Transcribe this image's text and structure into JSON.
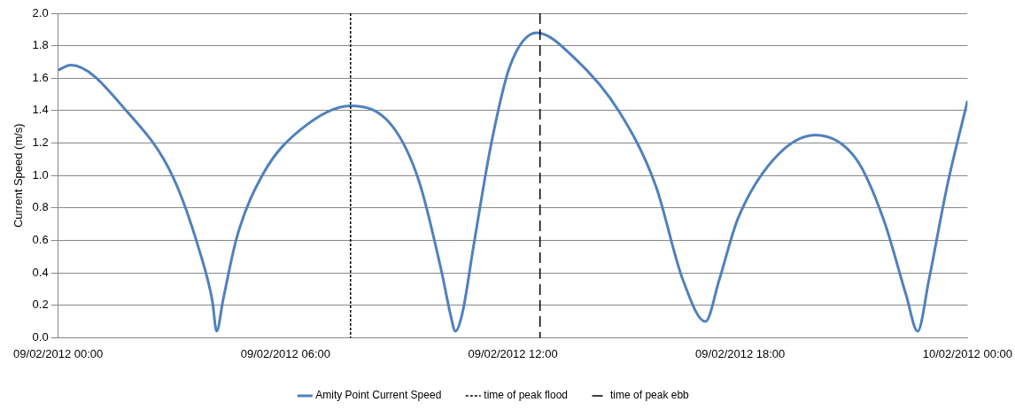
{
  "chart_data": {
    "type": "line",
    "ylabel": "Current Speed (m/s)",
    "x": [
      "2012-02-09T00:00",
      "2012-02-09T00:20",
      "2012-02-09T01:50",
      "2012-02-09T03:02",
      "2012-02-09T03:45",
      "2012-02-09T04:04",
      "2012-02-09T04:11",
      "2012-02-09T04:21",
      "2012-02-09T04:43",
      "2012-02-09T05:26",
      "2012-02-09T06:23",
      "2012-02-09T07:43",
      "2012-02-09T08:48",
      "2012-02-09T09:31",
      "2012-02-09T10:07",
      "2012-02-09T10:22",
      "2012-02-09T10:29",
      "2012-02-09T10:40",
      "2012-02-09T10:58",
      "2012-02-09T11:26",
      "2012-02-09T11:55",
      "2012-02-09T12:38",
      "2012-02-09T13:36",
      "2012-02-09T14:49",
      "2012-02-09T15:46",
      "2012-02-09T16:29",
      "2012-02-09T17:05",
      "2012-02-09T17:27",
      "2012-02-09T17:56",
      "2012-02-09T18:53",
      "2012-02-09T19:59",
      "2012-02-09T21:04",
      "2012-02-09T21:47",
      "2012-02-09T22:23",
      "2012-02-09T22:41",
      "2012-02-09T22:59",
      "2012-02-09T23:28",
      "2012-02-10T00:00"
    ],
    "series": [
      {
        "name": "Amity Point Current Speed",
        "color": "#4f81bd",
        "values": [
          1.65,
          1.68,
          1.39,
          0.99,
          0.52,
          0.23,
          0.04,
          0.23,
          0.62,
          1.02,
          1.28,
          1.43,
          1.31,
          0.97,
          0.41,
          0.13,
          0.04,
          0.15,
          0.57,
          1.2,
          1.67,
          1.88,
          1.73,
          1.39,
          0.94,
          0.36,
          0.1,
          0.36,
          0.73,
          1.1,
          1.25,
          1.1,
          0.73,
          0.26,
          0.04,
          0.36,
          0.94,
          1.46
        ]
      }
    ],
    "xlim": [
      "2012-02-09T00:00",
      "2012-02-10T00:00"
    ],
    "xticks": [
      {
        "value": "2012-02-09T00:00",
        "label": "09/02/2012 00:00"
      },
      {
        "value": "2012-02-09T06:00",
        "label": "09/02/2012 06:00"
      },
      {
        "value": "2012-02-09T12:00",
        "label": "09/02/2012 12:00"
      },
      {
        "value": "2012-02-09T18:00",
        "label": "09/02/2012 18:00"
      },
      {
        "value": "2012-02-10T00:00",
        "label": "10/02/2012 00:00"
      }
    ],
    "ylim": [
      0,
      2
    ],
    "yticks": [
      {
        "value": 0,
        "label": "0.0"
      },
      {
        "value": 0.2,
        "label": "0.2"
      },
      {
        "value": 0.4,
        "label": "0.4"
      },
      {
        "value": 0.6,
        "label": "0.6"
      },
      {
        "value": 0.8,
        "label": "0.8"
      },
      {
        "value": 1,
        "label": "1.0"
      },
      {
        "value": 1.2,
        "label": "1.2"
      },
      {
        "value": 1.4,
        "label": "1.4"
      },
      {
        "value": 1.6,
        "label": "1.6"
      },
      {
        "value": 1.8,
        "label": "1.8"
      },
      {
        "value": 2,
        "label": "2.0"
      }
    ],
    "ref_lines": [
      {
        "axis": "x",
        "value": "2012-02-09T07:43",
        "label": "time of peak flood",
        "color": "#000000",
        "line_style": "dotted"
      },
      {
        "axis": "x",
        "value": "2012-02-09T12:43",
        "label": "time of peak ebb",
        "color": "#000000",
        "line_style": "dashed"
      }
    ],
    "grid": "y",
    "legend": "bottom",
    "marker": "none",
    "line_style": "solid"
  }
}
